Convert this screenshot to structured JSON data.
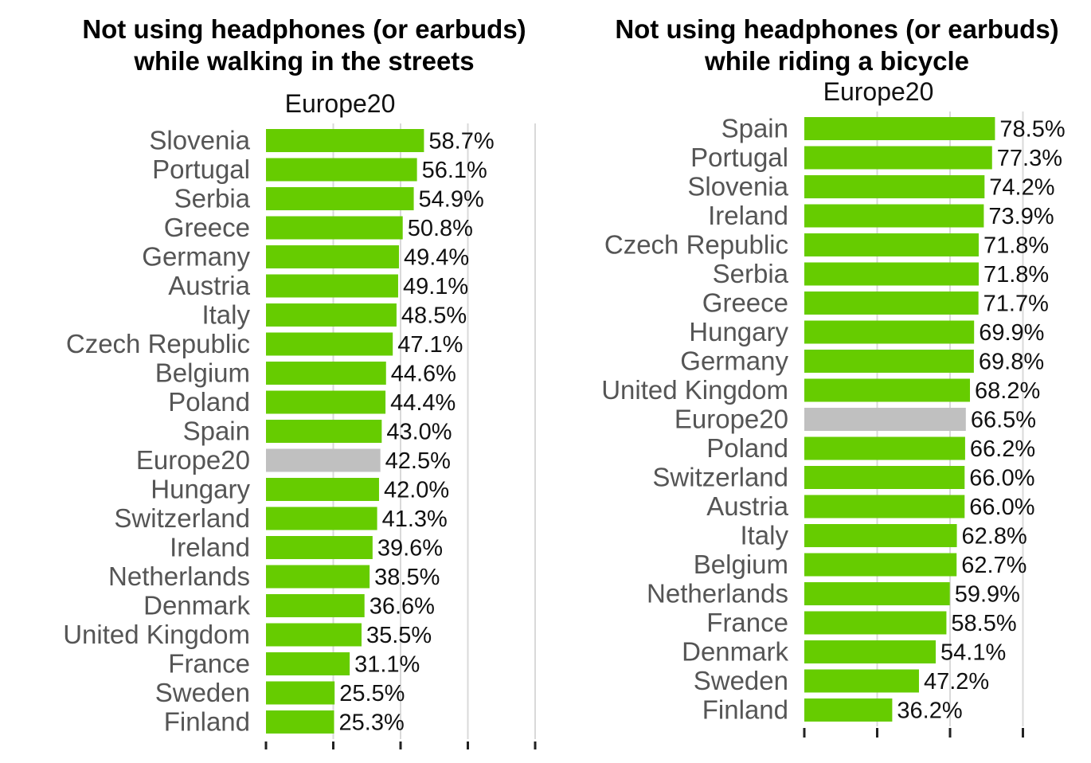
{
  "colors": {
    "bar": "#66cc00",
    "average_bar": "#c0c0c0",
    "grid": "#d9d9d9",
    "axis_tick": "#222222"
  },
  "chart_data": [
    {
      "type": "bar",
      "orientation": "horizontal",
      "title": "Not using headphones (or earbuds)\nwhile walking in the streets",
      "subtitle": "Europe20",
      "xlim": [
        0,
        100
      ],
      "grid": true,
      "categories": [
        "Slovenia",
        "Portugal",
        "Serbia",
        "Greece",
        "Germany",
        "Austria",
        "Italy",
        "Czech Republic",
        "Belgium",
        "Poland",
        "Spain",
        "Europe20",
        "Hungary",
        "Switzerland",
        "Ireland",
        "Netherlands",
        "Denmark",
        "United Kingdom",
        "France",
        "Sweden",
        "Finland"
      ],
      "values": [
        58.7,
        56.1,
        54.9,
        50.8,
        49.4,
        49.1,
        48.5,
        47.1,
        44.6,
        44.4,
        43.0,
        42.5,
        42.0,
        41.3,
        39.6,
        38.5,
        36.6,
        35.5,
        31.1,
        25.5,
        25.3
      ],
      "value_labels": [
        "58.7%",
        "56.1%",
        "54.9%",
        "50.8%",
        "49.4%",
        "49.1%",
        "48.5%",
        "47.1%",
        "44.6%",
        "44.4%",
        "43.0%",
        "42.5%",
        "42.0%",
        "41.3%",
        "39.6%",
        "38.5%",
        "36.6%",
        "35.5%",
        "31.1%",
        "25.5%",
        "25.3%"
      ],
      "highlight": "Europe20"
    },
    {
      "type": "bar",
      "orientation": "horizontal",
      "title": "Not using headphones (or earbuds)\nwhile riding a bicycle",
      "subtitle": "Europe20",
      "xlim": [
        0,
        90
      ],
      "grid": true,
      "categories": [
        "Spain",
        "Portugal",
        "Slovenia",
        "Ireland",
        "Czech Republic",
        "Serbia",
        "Greece",
        "Hungary",
        "Germany",
        "United Kingdom",
        "Europe20",
        "Poland",
        "Switzerland",
        "Austria",
        "Italy",
        "Belgium",
        "Netherlands",
        "France",
        "Denmark",
        "Sweden",
        "Finland"
      ],
      "values": [
        78.5,
        77.3,
        74.2,
        73.9,
        71.8,
        71.8,
        71.7,
        69.9,
        69.8,
        68.2,
        66.5,
        66.2,
        66.0,
        66.0,
        62.8,
        62.7,
        59.9,
        58.5,
        54.1,
        47.2,
        36.2
      ],
      "value_labels": [
        "78.5%",
        "77.3%",
        "74.2%",
        "73.9%",
        "71.8%",
        "71.8%",
        "71.7%",
        "69.9%",
        "69.8%",
        "68.2%",
        "66.5%",
        "66.2%",
        "66.0%",
        "66.0%",
        "62.8%",
        "62.7%",
        "59.9%",
        "58.5%",
        "54.1%",
        "47.2%",
        "36.2%"
      ],
      "highlight": "Europe20"
    }
  ]
}
